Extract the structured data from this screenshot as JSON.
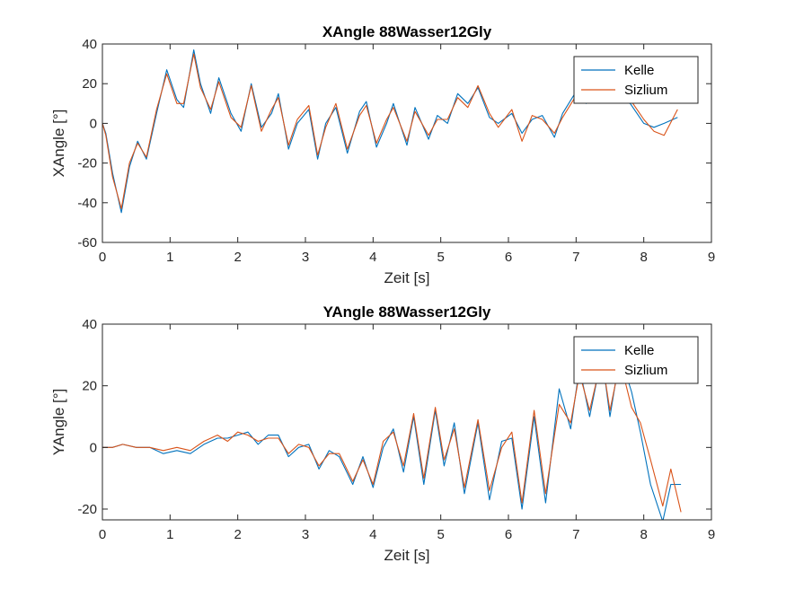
{
  "chart_data": [
    {
      "type": "line",
      "title": "XAngle 88Wasser12Gly",
      "xlabel": "Zeit [s]",
      "ylabel": "XAngle [°]",
      "xlim": [
        0,
        9
      ],
      "ylim": [
        -60,
        40
      ],
      "xticks": [
        0,
        1,
        2,
        3,
        4,
        5,
        6,
        7,
        8,
        9
      ],
      "yticks": [
        -60,
        -40,
        -20,
        0,
        20,
        40
      ],
      "xtick_labels": [
        "0",
        "1",
        "2",
        "3",
        "4",
        "5",
        "6",
        "7",
        "8",
        "9"
      ],
      "ytick_labels": [
        "-60",
        "-40",
        "-20",
        "0",
        "20",
        "40"
      ],
      "grid": false,
      "legend_position": "top-right",
      "series": [
        {
          "name": "Kelle",
          "color": "#0072BD",
          "x": [
            0,
            0.05,
            0.15,
            0.28,
            0.4,
            0.52,
            0.65,
            0.8,
            0.95,
            1.1,
            1.2,
            1.35,
            1.45,
            1.6,
            1.72,
            1.9,
            2.05,
            2.2,
            2.35,
            2.5,
            2.6,
            2.75,
            2.88,
            3.05,
            3.18,
            3.3,
            3.45,
            3.62,
            3.8,
            3.9,
            4.05,
            4.2,
            4.3,
            4.5,
            4.62,
            4.82,
            4.95,
            5.1,
            5.25,
            5.4,
            5.55,
            5.72,
            5.85,
            6.05,
            6.2,
            6.35,
            6.5,
            6.68,
            6.8,
            7.0,
            7.15,
            7.3,
            7.45,
            7.6,
            7.8,
            8.0,
            8.15,
            8.3,
            8.5
          ],
          "y": [
            0,
            -5,
            -25,
            -45,
            -22,
            -9,
            -18,
            5,
            27,
            12,
            8,
            37,
            20,
            5,
            23,
            5,
            -4,
            20,
            -2,
            5,
            15,
            -13,
            0,
            7,
            -18,
            0,
            8,
            -15,
            6,
            11,
            -12,
            0,
            10,
            -11,
            8,
            -8,
            4,
            0,
            15,
            10,
            18,
            3,
            0,
            5,
            -5,
            2,
            4,
            -7,
            5,
            16,
            10,
            15,
            12,
            12,
            10,
            0,
            -2,
            0,
            3
          ]
        },
        {
          "name": "Sizlium",
          "color": "#D95319",
          "x": [
            0,
            0.05,
            0.15,
            0.28,
            0.4,
            0.52,
            0.65,
            0.8,
            0.95,
            1.1,
            1.2,
            1.35,
            1.45,
            1.6,
            1.72,
            1.9,
            2.05,
            2.2,
            2.35,
            2.5,
            2.6,
            2.75,
            2.88,
            3.05,
            3.18,
            3.3,
            3.45,
            3.62,
            3.8,
            3.9,
            4.05,
            4.2,
            4.3,
            4.5,
            4.62,
            4.82,
            4.95,
            5.1,
            5.25,
            5.4,
            5.55,
            5.72,
            5.85,
            6.05,
            6.2,
            6.35,
            6.5,
            6.68,
            6.8,
            7.0,
            7.15,
            7.3,
            7.45,
            7.6,
            7.8,
            8.0,
            8.15,
            8.3,
            8.5
          ],
          "y": [
            0,
            -6,
            -27,
            -43,
            -20,
            -10,
            -17,
            7,
            25,
            10,
            10,
            35,
            18,
            7,
            21,
            3,
            -2,
            19,
            -4,
            7,
            13,
            -11,
            2,
            9,
            -16,
            -2,
            10,
            -13,
            4,
            9,
            -10,
            2,
            8,
            -9,
            6,
            -6,
            2,
            2,
            13,
            8,
            19,
            5,
            -2,
            7,
            -9,
            4,
            2,
            -5,
            3,
            14,
            11,
            13,
            13,
            11,
            12,
            2,
            -4,
            -6,
            7
          ]
        }
      ]
    },
    {
      "type": "line",
      "title": "YAngle 88Wasser12Gly",
      "xlabel": "Zeit [s]",
      "ylabel": "YAngle [°]",
      "xlim": [
        0,
        9
      ],
      "ylim": [
        -23.5,
        40
      ],
      "xticks": [
        0,
        1,
        2,
        3,
        4,
        5,
        6,
        7,
        8,
        9
      ],
      "yticks": [
        -20,
        0,
        20,
        40
      ],
      "xtick_labels": [
        "0",
        "1",
        "2",
        "3",
        "4",
        "5",
        "6",
        "7",
        "8",
        "9"
      ],
      "ytick_labels": [
        "-20",
        "0",
        "20",
        "40"
      ],
      "grid": false,
      "legend_position": "top-right",
      "series": [
        {
          "name": "Kelle",
          "color": "#0072BD",
          "x": [
            0,
            0.15,
            0.3,
            0.5,
            0.7,
            0.9,
            1.1,
            1.3,
            1.5,
            1.7,
            1.85,
            2.0,
            2.15,
            2.3,
            2.45,
            2.6,
            2.75,
            2.9,
            3.05,
            3.2,
            3.35,
            3.5,
            3.7,
            3.85,
            4.0,
            4.15,
            4.3,
            4.45,
            4.6,
            4.75,
            4.92,
            5.05,
            5.2,
            5.35,
            5.55,
            5.72,
            5.9,
            6.05,
            6.2,
            6.38,
            6.55,
            6.75,
            6.92,
            7.05,
            7.2,
            7.38,
            7.5,
            7.65,
            7.82,
            7.95,
            8.1,
            8.28,
            8.4,
            8.55
          ],
          "y": [
            0,
            0,
            1,
            0,
            0,
            -2,
            -1,
            -2,
            1,
            3,
            3,
            4,
            5,
            1,
            4,
            4,
            -3,
            0,
            1,
            -7,
            -1,
            -3,
            -12,
            -3,
            -13,
            0,
            6,
            -8,
            10,
            -12,
            12,
            -6,
            8,
            -15,
            8,
            -17,
            2,
            3,
            -20,
            10,
            -18,
            19,
            6,
            26,
            10,
            30,
            10,
            30,
            18,
            5,
            -12,
            -24,
            -12,
            -12
          ]
        },
        {
          "name": "Sizlium",
          "color": "#D95319",
          "x": [
            0,
            0.15,
            0.3,
            0.5,
            0.7,
            0.9,
            1.1,
            1.3,
            1.5,
            1.7,
            1.85,
            2.0,
            2.15,
            2.3,
            2.45,
            2.6,
            2.75,
            2.9,
            3.05,
            3.2,
            3.35,
            3.5,
            3.7,
            3.85,
            4.0,
            4.15,
            4.3,
            4.45,
            4.6,
            4.75,
            4.92,
            5.05,
            5.2,
            5.35,
            5.55,
            5.72,
            5.9,
            6.05,
            6.2,
            6.38,
            6.55,
            6.75,
            6.92,
            7.05,
            7.2,
            7.38,
            7.5,
            7.65,
            7.82,
            7.95,
            8.1,
            8.28,
            8.4,
            8.55
          ],
          "y": [
            0,
            0,
            1,
            0,
            0,
            -1,
            0,
            -1,
            2,
            4,
            2,
            5,
            4,
            2,
            3,
            3,
            -2,
            1,
            0,
            -6,
            -2,
            -2,
            -11,
            -4,
            -12,
            2,
            5,
            -6,
            11,
            -10,
            13,
            -4,
            6,
            -13,
            9,
            -14,
            0,
            5,
            -18,
            12,
            -15,
            14,
            8,
            24,
            12,
            29,
            12,
            28,
            13,
            8,
            -4,
            -19,
            -7,
            -21
          ]
        }
      ]
    }
  ]
}
